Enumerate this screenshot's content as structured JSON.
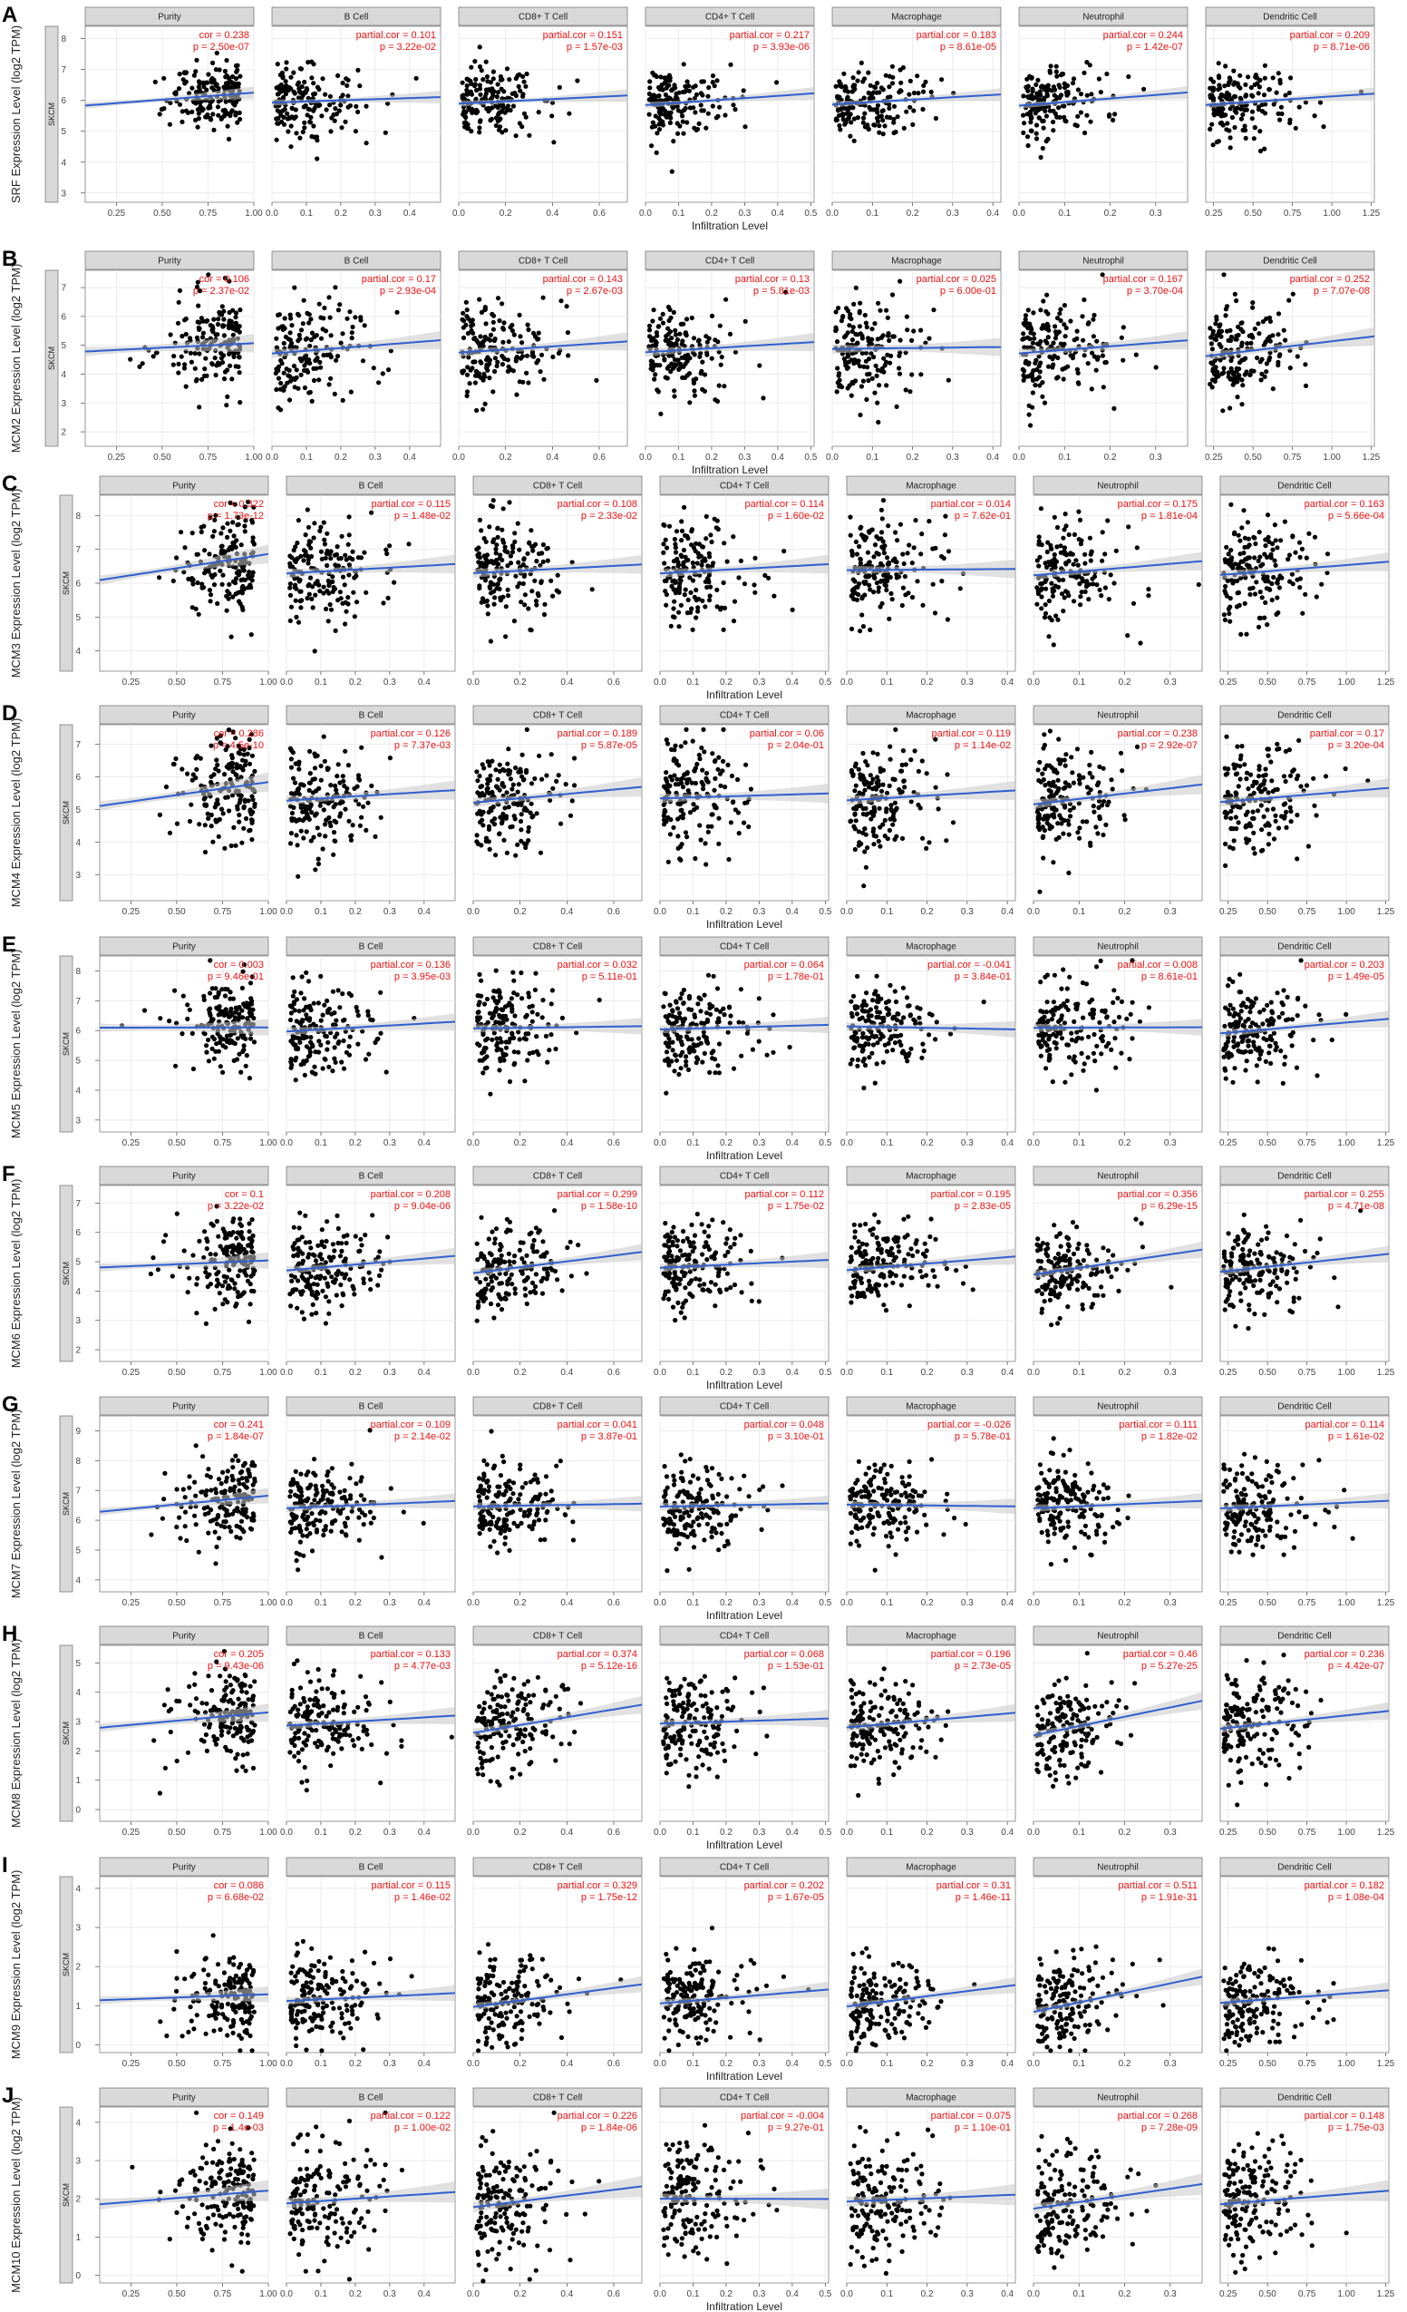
{
  "figure": {
    "x_axis_label": "Infiltration Level",
    "strip_label": "SKCM",
    "panels": [
      "Purity",
      "B Cell",
      "CD8+ T Cell",
      "CD4+ T Cell",
      "Macrophage",
      "Neutrophil",
      "Dendritic Cell"
    ],
    "colors": {
      "points": "#000000",
      "fit": "#2f5fd0",
      "band": "#c8c8c8",
      "annot": "#ee1111",
      "strip": "#d9d9d9",
      "grid": "#ebebeb"
    },
    "x_axes": [
      {
        "ticks": [
          0.25,
          0.5,
          0.75,
          1.0
        ],
        "labels": [
          "0.25",
          "0.50",
          "0.75",
          "1.00"
        ],
        "range": [
          0.08,
          1.0
        ]
      },
      {
        "ticks": [
          0,
          0.1,
          0.2,
          0.3,
          0.4
        ],
        "labels": [
          "0.0",
          "0.1",
          "0.2",
          "0.3",
          "0.4"
        ],
        "range": [
          0,
          0.49
        ]
      },
      {
        "ticks": [
          0,
          0.2,
          0.4,
          0.6
        ],
        "labels": [
          "0.0",
          "0.2",
          "0.4",
          "0.6"
        ],
        "range": [
          0,
          0.72
        ]
      },
      {
        "ticks": [
          0,
          0.1,
          0.2,
          0.3,
          0.4,
          0.5
        ],
        "labels": [
          "0.0",
          "0.1",
          "0.2",
          "0.3",
          "0.4",
          "0.5"
        ],
        "range": [
          0,
          0.51
        ]
      },
      {
        "ticks": [
          0,
          0.1,
          0.2,
          0.3,
          0.4
        ],
        "labels": [
          "0.0",
          "0.1",
          "0.2",
          "0.3",
          "0.4"
        ],
        "range": [
          0,
          0.42
        ]
      },
      {
        "ticks": [
          0,
          0.1,
          0.2,
          0.3
        ],
        "labels": [
          "0.0",
          "0.1",
          "0.2",
          "0.3"
        ],
        "range": [
          0,
          0.37
        ]
      },
      {
        "ticks": [
          0.25,
          0.5,
          0.75,
          1.0,
          1.25
        ],
        "labels": [
          "0.25",
          "0.50",
          "0.75",
          "1.00",
          "1.25"
        ],
        "range": [
          0.2,
          1.27
        ]
      }
    ]
  },
  "chart_data": [
    {
      "type": "scatter",
      "letter": "A",
      "gene": "SRF",
      "ylabel": "SRF Expression Level (log2 TPM)",
      "yticks": [
        3,
        4,
        5,
        6,
        7,
        8
      ],
      "ylim": [
        2.7,
        8.4
      ],
      "center": 6.0,
      "spread": 0.55,
      "annotations": [
        {
          "cor": "cor = 0.238",
          "p": "p = 2.50e-07"
        },
        {
          "cor": "partial.cor = 0.101",
          "p": "p = 3.22e-02"
        },
        {
          "cor": "partial.cor = 0.151",
          "p": "p = 1.57e-03"
        },
        {
          "cor": "partial.cor = 0.217",
          "p": "p = 3.93e-06"
        },
        {
          "cor": "partial.cor = 0.183",
          "p": "p = 8.61e-05"
        },
        {
          "cor": "partial.cor = 0.244",
          "p": "p = 1.42e-07"
        },
        {
          "cor": "partial.cor = 0.209",
          "p": "p = 8.71e-06"
        }
      ]
    },
    {
      "type": "scatter",
      "letter": "B",
      "gene": "MCM2",
      "ylabel": "MCM2 Expression Level (log2 TPM)",
      "yticks": [
        2,
        3,
        4,
        5,
        6,
        7
      ],
      "ylim": [
        1.5,
        7.6
      ],
      "center": 4.9,
      "spread": 0.85,
      "annotations": [
        {
          "cor": "cor = 0.106",
          "p": "p = 2.37e-02"
        },
        {
          "cor": "partial.cor = 0.17",
          "p": "p = 2.93e-04"
        },
        {
          "cor": "partial.cor = 0.143",
          "p": "p = 2.67e-03"
        },
        {
          "cor": "partial.cor = 0.13",
          "p": "p = 5.81e-03"
        },
        {
          "cor": "partial.cor = 0.025",
          "p": "p = 6.00e-01"
        },
        {
          "cor": "partial.cor = 0.167",
          "p": "p = 3.70e-04"
        },
        {
          "cor": "partial.cor = 0.252",
          "p": "p = 7.07e-08"
        }
      ]
    },
    {
      "type": "scatter",
      "letter": "C",
      "gene": "MCM3",
      "ylabel": "MCM3 Expression Level (log2 TPM)",
      "yticks": [
        4,
        5,
        6,
        7,
        8
      ],
      "ylim": [
        3.4,
        8.6
      ],
      "center": 6.4,
      "spread": 0.75,
      "annotations": [
        {
          "cor": "cor = 0.322",
          "p": "p = 1.73e-12"
        },
        {
          "cor": "partial.cor = 0.115",
          "p": "p = 1.48e-02"
        },
        {
          "cor": "partial.cor = 0.108",
          "p": "p = 2.33e-02"
        },
        {
          "cor": "partial.cor = 0.114",
          "p": "p = 1.60e-02"
        },
        {
          "cor": "partial.cor = 0.014",
          "p": "p = 7.62e-01"
        },
        {
          "cor": "partial.cor = 0.175",
          "p": "p = 1.81e-04"
        },
        {
          "cor": "partial.cor = 0.163",
          "p": "p = 5.66e-04"
        }
      ]
    },
    {
      "type": "scatter",
      "letter": "D",
      "gene": "MCM4",
      "ylabel": "MCM4 Expression Level (log2 TPM)",
      "yticks": [
        3,
        4,
        5,
        6,
        7
      ],
      "ylim": [
        2.2,
        7.6
      ],
      "center": 5.4,
      "spread": 0.8,
      "annotations": [
        {
          "cor": "cor = 0.286",
          "p": "p = 4.5e-10"
        },
        {
          "cor": "partial.cor = 0.126",
          "p": "p = 7.37e-03"
        },
        {
          "cor": "partial.cor = 0.189",
          "p": "p = 5.87e-05"
        },
        {
          "cor": "partial.cor = 0.06",
          "p": "p = 2.04e-01"
        },
        {
          "cor": "partial.cor = 0.119",
          "p": "p = 1.14e-02"
        },
        {
          "cor": "partial.cor = 0.238",
          "p": "p = 2.92e-07"
        },
        {
          "cor": "partial.cor = 0.17",
          "p": "p = 3.20e-04"
        }
      ]
    },
    {
      "type": "scatter",
      "letter": "E",
      "gene": "MCM5",
      "ylabel": "MCM5 Expression Level (log2 TPM)",
      "yticks": [
        3,
        4,
        5,
        6,
        7,
        8
      ],
      "ylim": [
        2.6,
        8.5
      ],
      "center": 6.1,
      "spread": 0.75,
      "annotations": [
        {
          "cor": "cor = 0.003",
          "p": "p = 9.46e-01"
        },
        {
          "cor": "partial.cor = 0.136",
          "p": "p = 3.95e-03"
        },
        {
          "cor": "partial.cor = 0.032",
          "p": "p = 5.11e-01"
        },
        {
          "cor": "partial.cor = 0.064",
          "p": "p = 1.78e-01"
        },
        {
          "cor": "partial.cor = -0.041",
          "p": "p = 3.84e-01"
        },
        {
          "cor": "partial.cor = 0.008",
          "p": "p = 8.61e-01"
        },
        {
          "cor": "partial.cor = 0.203",
          "p": "p = 1.49e-05"
        }
      ]
    },
    {
      "type": "scatter",
      "letter": "F",
      "gene": "MCM6",
      "ylabel": "MCM6 Expression Level (log2 TPM)",
      "yticks": [
        2,
        3,
        4,
        5,
        6,
        7
      ],
      "ylim": [
        1.6,
        7.6
      ],
      "center": 4.9,
      "spread": 0.75,
      "annotations": [
        {
          "cor": "cor = 0.1",
          "p": "p = 3.22e-02"
        },
        {
          "cor": "partial.cor = 0.208",
          "p": "p = 9.04e-06"
        },
        {
          "cor": "partial.cor = 0.299",
          "p": "p = 1.58e-10"
        },
        {
          "cor": "partial.cor = 0.112",
          "p": "p = 1.75e-02"
        },
        {
          "cor": "partial.cor = 0.195",
          "p": "p = 2.83e-05"
        },
        {
          "cor": "partial.cor = 0.356",
          "p": "p = 6.29e-15"
        },
        {
          "cor": "partial.cor = 0.255",
          "p": "p = 4.71e-08"
        }
      ]
    },
    {
      "type": "scatter",
      "letter": "G",
      "gene": "MCM7",
      "ylabel": "MCM7 Expression Level (log2 TPM)",
      "yticks": [
        4,
        5,
        6,
        7,
        8,
        9
      ],
      "ylim": [
        3.6,
        9.5
      ],
      "center": 6.5,
      "spread": 0.7,
      "annotations": [
        {
          "cor": "cor = 0.241",
          "p": "p = 1.84e-07"
        },
        {
          "cor": "partial.cor = 0.109",
          "p": "p = 2.14e-02"
        },
        {
          "cor": "partial.cor = 0.041",
          "p": "p = 3.87e-01"
        },
        {
          "cor": "partial.cor = 0.048",
          "p": "p = 3.10e-01"
        },
        {
          "cor": "partial.cor = -0.026",
          "p": "p = 5.78e-01"
        },
        {
          "cor": "partial.cor = 0.111",
          "p": "p = 1.82e-02"
        },
        {
          "cor": "partial.cor = 0.114",
          "p": "p = 1.61e-02"
        }
      ]
    },
    {
      "type": "scatter",
      "letter": "H",
      "gene": "MCM8",
      "ylabel": "MCM8 Expression Level (log2 TPM)",
      "yticks": [
        0,
        1,
        2,
        3,
        4,
        5
      ],
      "ylim": [
        -0.4,
        5.6
      ],
      "center": 3.0,
      "spread": 0.8,
      "annotations": [
        {
          "cor": "cor = 0.205",
          "p": "p = 9.43e-06"
        },
        {
          "cor": "partial.cor = 0.133",
          "p": "p = 4.77e-03"
        },
        {
          "cor": "partial.cor = 0.374",
          "p": "p = 5.12e-16"
        },
        {
          "cor": "partial.cor = 0.068",
          "p": "p = 1.53e-01"
        },
        {
          "cor": "partial.cor = 0.196",
          "p": "p = 2.73e-05"
        },
        {
          "cor": "partial.cor = 0.46",
          "p": "p = 5.27e-25"
        },
        {
          "cor": "partial.cor = 0.236",
          "p": "p = 4.42e-07"
        }
      ]
    },
    {
      "type": "scatter",
      "letter": "I",
      "gene": "MCM9",
      "ylabel": "MCM9 Expression Level (log2 TPM)",
      "yticks": [
        0,
        1,
        2,
        3,
        4
      ],
      "ylim": [
        -0.2,
        4.3
      ],
      "center": 1.2,
      "spread": 0.55,
      "annotations": [
        {
          "cor": "cor = 0.086",
          "p": "p = 6.68e-02"
        },
        {
          "cor": "partial.cor = 0.115",
          "p": "p = 1.46e-02"
        },
        {
          "cor": "partial.cor = 0.329",
          "p": "p = 1.75e-12"
        },
        {
          "cor": "partial.cor = 0.202",
          "p": "p = 1.67e-05"
        },
        {
          "cor": "partial.cor = 0.31",
          "p": "p = 1.46e-11"
        },
        {
          "cor": "partial.cor = 0.511",
          "p": "p = 1.91e-31"
        },
        {
          "cor": "partial.cor = 0.182",
          "p": "p = 1.08e-04"
        }
      ]
    },
    {
      "type": "scatter",
      "letter": "J",
      "gene": "MCM10",
      "ylabel": "MCM10 Expression Level (log2 TPM)",
      "yticks": [
        0,
        1,
        2,
        3,
        4
      ],
      "ylim": [
        -0.2,
        4.4
      ],
      "center": 2.0,
      "spread": 0.75,
      "annotations": [
        {
          "cor": "cor = 0.149",
          "p": "p = 1.4e-03"
        },
        {
          "cor": "partial.cor = 0.122",
          "p": "p = 1.00e-02"
        },
        {
          "cor": "partial.cor = 0.226",
          "p": "p = 1.84e-06"
        },
        {
          "cor": "partial.cor = -0.004",
          "p": "p = 9.27e-01"
        },
        {
          "cor": "partial.cor = 0.075",
          "p": "p = 1.10e-01"
        },
        {
          "cor": "partial.cor = 0.268",
          "p": "p = 7.28e-09"
        },
        {
          "cor": "partial.cor = 0.148",
          "p": "p = 1.75e-03"
        }
      ]
    }
  ]
}
